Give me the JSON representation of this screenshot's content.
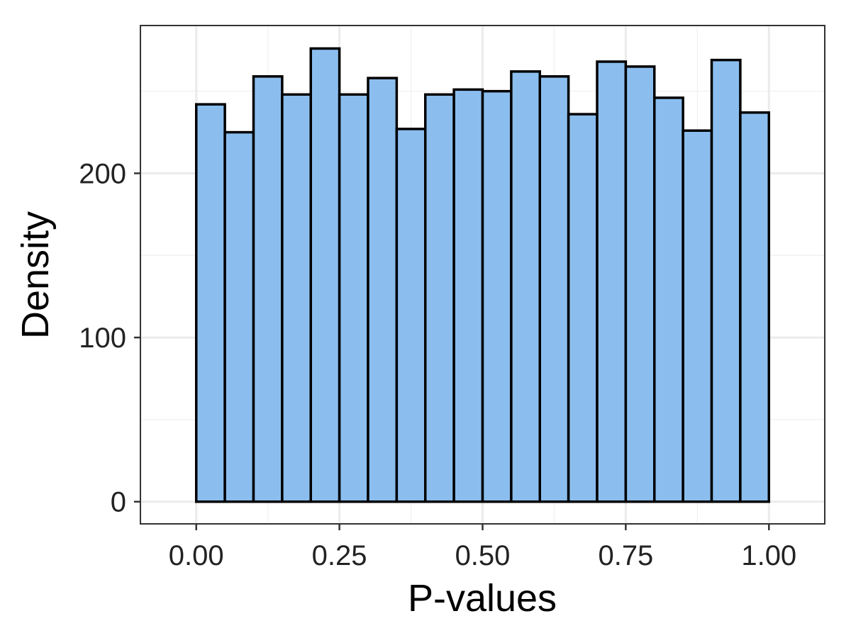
{
  "chart_data": {
    "type": "bar",
    "subtype": "histogram",
    "title": "",
    "xlabel": "P-values",
    "ylabel": "Density",
    "bin_edges": [
      0.0,
      0.05,
      0.1,
      0.15,
      0.2,
      0.25,
      0.3,
      0.35,
      0.4,
      0.45,
      0.5,
      0.55,
      0.6,
      0.65,
      0.7,
      0.75,
      0.8,
      0.85,
      0.9,
      0.95,
      1.0
    ],
    "values": [
      242,
      225,
      259,
      248,
      276,
      248,
      258,
      227,
      248,
      251,
      250,
      262,
      259,
      236,
      268,
      265,
      246,
      226,
      269,
      237
    ],
    "xlim": [
      -0.0975,
      1.0975
    ],
    "ylim": [
      -13.5,
      290
    ],
    "x_ticks": [
      0.0,
      0.25,
      0.5,
      0.75,
      1.0
    ],
    "x_tick_labels": [
      "0.00",
      "0.25",
      "0.50",
      "0.75",
      "1.00"
    ],
    "y_ticks": [
      0,
      100,
      200
    ],
    "y_tick_labels": [
      "0",
      "100",
      "200"
    ],
    "grid": true,
    "legend": "none",
    "colors": {
      "bar_fill": "#8BBEEE",
      "bar_stroke": "#000000",
      "grid_major": "#EBEBEB",
      "grid_minor": "#F2F2F2",
      "panel_border": "#333333",
      "background": "#FFFFFF"
    }
  }
}
